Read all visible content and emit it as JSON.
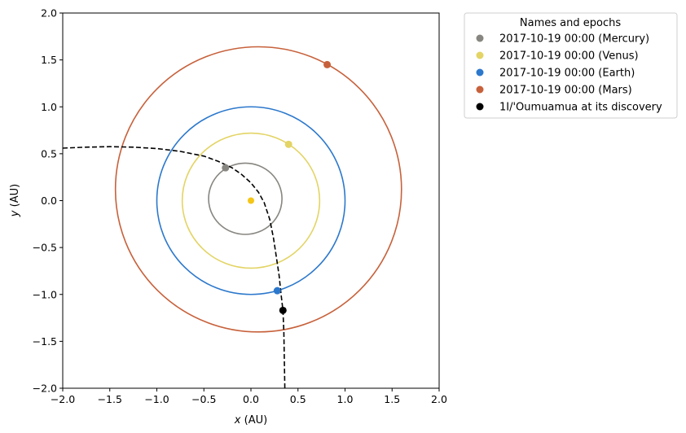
{
  "chart_data": {
    "type": "scatter",
    "xlabel": {
      "var": "x",
      "unit": " (AU)"
    },
    "ylabel": {
      "var": "y",
      "unit": " (AU)"
    },
    "xlim": [
      -2.0,
      2.0
    ],
    "ylim": [
      -2.0,
      2.0
    ],
    "xticks": [
      "−2.0",
      "−1.5",
      "−1.0",
      "−0.5",
      "0.0",
      "0.5",
      "1.0",
      "1.5",
      "2.0"
    ],
    "yticks": [
      "−2.0",
      "−1.5",
      "−1.0",
      "−0.5",
      "0.0",
      "0.5",
      "1.0",
      "1.5",
      "2.0"
    ],
    "xtick_values": [
      -2.0,
      -1.5,
      -1.0,
      -0.5,
      0.0,
      0.5,
      1.0,
      1.5,
      2.0
    ],
    "ytick_values": [
      -2.0,
      -1.5,
      -1.0,
      -0.5,
      0.0,
      0.5,
      1.0,
      1.5,
      2.0
    ],
    "grid": false,
    "legend_position": "outside-top-right",
    "legend": {
      "title": "Names and epochs",
      "entries": [
        {
          "label": "2017-10-19 00:00 (Mercury)",
          "color": "#888680"
        },
        {
          "label": "2017-10-19 00:00 (Venus)",
          "color": "#e3d465"
        },
        {
          "label": "2017-10-19 00:00 (Earth)",
          "color": "#2c78cc"
        },
        {
          "label": "2017-10-19 00:00 (Mars)",
          "color": "#c7613b"
        },
        {
          "label": "1I/'Oumuamua at its discovery",
          "color": "#000000"
        }
      ]
    },
    "sun": {
      "x": 0.0,
      "y": 0.0,
      "color": "#f5c518"
    },
    "orbits": [
      {
        "name": "Mercury",
        "cx": -0.06,
        "cy": 0.02,
        "rx": 0.39,
        "ry": 0.38,
        "color": "#888680"
      },
      {
        "name": "Venus",
        "cx": 0.0,
        "cy": 0.0,
        "rx": 0.73,
        "ry": 0.72,
        "color": "#e3d465"
      },
      {
        "name": "Earth",
        "cx": 0.0,
        "cy": 0.0,
        "rx": 1.0,
        "ry": 1.0,
        "color": "#2c78cc"
      },
      {
        "name": "Mars",
        "cx": 0.08,
        "cy": 0.12,
        "rx": 1.52,
        "ry": 1.52,
        "color": "#c7613b"
      }
    ],
    "bodies": [
      {
        "name": "Mercury",
        "x": -0.27,
        "y": 0.35,
        "color": "#888680"
      },
      {
        "name": "Venus",
        "x": 0.4,
        "y": 0.6,
        "color": "#e3d465"
      },
      {
        "name": "Earth",
        "x": 0.28,
        "y": -0.96,
        "color": "#2c78cc"
      },
      {
        "name": "Mars",
        "x": 0.81,
        "y": 1.45,
        "color": "#c7613b"
      },
      {
        "name": "1I/'Oumuamua",
        "x": 0.34,
        "y": -1.17,
        "color": "#000000"
      }
    ],
    "trajectory": {
      "name": "1I/'Oumuamua",
      "style": "dashed",
      "color": "#000000",
      "points": [
        [
          -2.0,
          0.56
        ],
        [
          -1.75,
          0.57
        ],
        [
          -1.5,
          0.575
        ],
        [
          -1.25,
          0.57
        ],
        [
          -1.0,
          0.555
        ],
        [
          -0.75,
          0.525
        ],
        [
          -0.5,
          0.475
        ],
        [
          -0.35,
          0.42
        ],
        [
          -0.2,
          0.35
        ],
        [
          -0.1,
          0.28
        ],
        [
          0.0,
          0.19
        ],
        [
          0.08,
          0.09
        ],
        [
          0.14,
          -0.02
        ],
        [
          0.2,
          -0.2
        ],
        [
          0.24,
          -0.4
        ],
        [
          0.27,
          -0.6
        ],
        [
          0.3,
          -0.8
        ],
        [
          0.32,
          -1.0
        ],
        [
          0.34,
          -1.17
        ],
        [
          0.35,
          -1.4
        ],
        [
          0.355,
          -1.7
        ],
        [
          0.36,
          -2.0
        ]
      ]
    }
  }
}
